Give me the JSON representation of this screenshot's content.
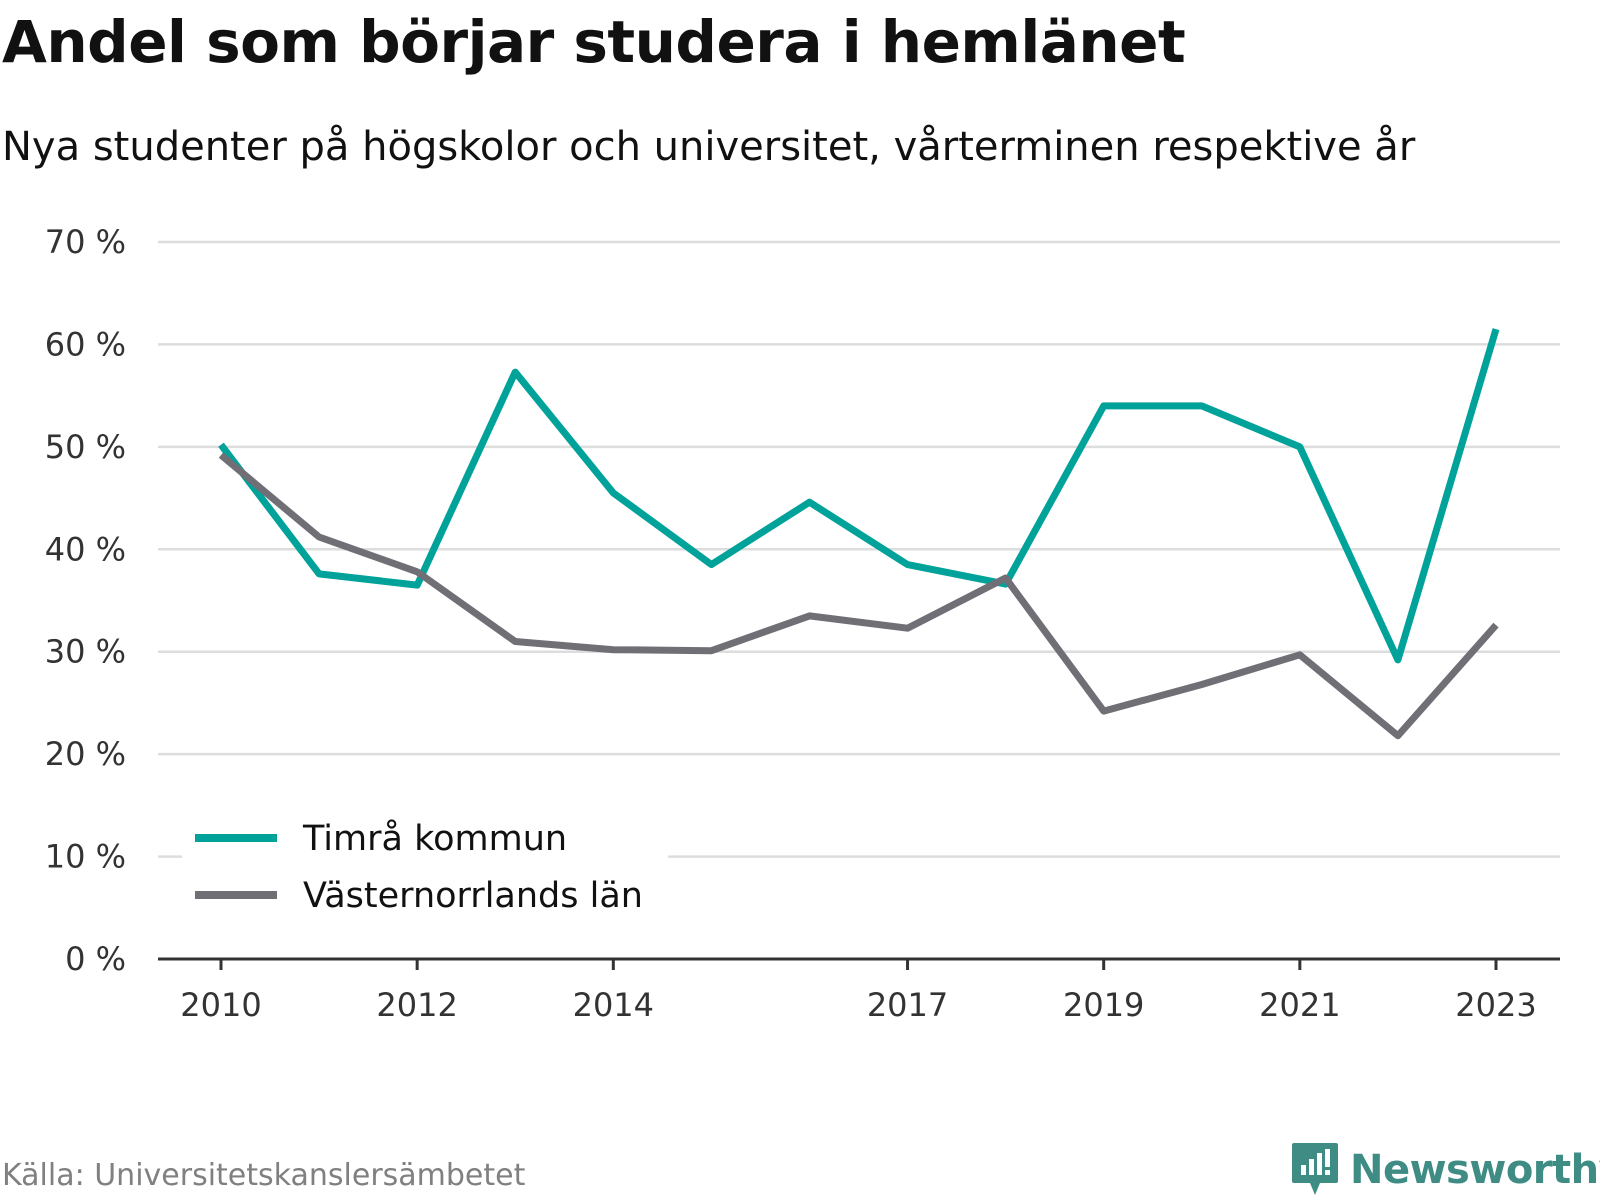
{
  "title": "Andel som börjar studera i hemlänet",
  "subtitle": "Nya studenter på högskolor och universitet, vårterminen respektive år",
  "source": "Källa: Universitetskanslersämbetet",
  "brand": {
    "name": "Newsworthy",
    "icon": "newsworthy-logo-icon",
    "color": "#3f8c85"
  },
  "chart_data": {
    "type": "line",
    "x": [
      2010,
      2011,
      2012,
      2013,
      2014,
      2015,
      2016,
      2017,
      2018,
      2019,
      2020,
      2021,
      2022,
      2023
    ],
    "x_ticks": [
      "2010",
      "2012",
      "2014",
      "2017",
      "2019",
      "2021",
      "2023"
    ],
    "ylim": [
      0,
      70
    ],
    "y_ticks": [
      "0 %",
      "10 %",
      "20 %",
      "30 %",
      "40 %",
      "50 %",
      "60 %",
      "70 %"
    ],
    "grid": true,
    "legend_position": "bottom-left",
    "series": [
      {
        "name": "Timrå kommun",
        "color": "#00a29a",
        "values": [
          50.2,
          37.6,
          36.5,
          57.3,
          45.5,
          38.5,
          44.6,
          38.5,
          36.6,
          54.0,
          54.0,
          50.0,
          29.2,
          61.5
        ]
      },
      {
        "name": "Västernorrlands län",
        "color": "#706f76",
        "values": [
          49.2,
          41.2,
          37.8,
          31.0,
          30.2,
          30.1,
          33.5,
          32.3,
          37.2,
          24.2,
          26.8,
          29.7,
          21.8,
          32.6
        ]
      }
    ]
  }
}
